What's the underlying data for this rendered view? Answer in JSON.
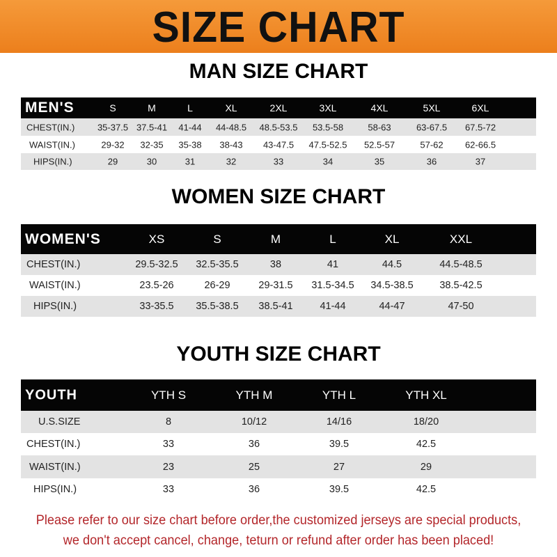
{
  "banner": {
    "title": "SIZE CHART",
    "color": "#ee8a2a"
  },
  "men": {
    "title": "MAN SIZE CHART",
    "corner": "MEN'S",
    "sizes": [
      "S",
      "M",
      "L",
      "XL",
      "2XL",
      "3XL",
      "4XL",
      "5XL",
      "6XL"
    ],
    "rows": [
      {
        "label": "CHEST(IN.)",
        "values": [
          "35-37.5",
          "37.5-41",
          "41-44",
          "44-48.5",
          "48.5-53.5",
          "53.5-58",
          "58-63",
          "63-67.5",
          "67.5-72"
        ]
      },
      {
        "label": "WAIST(IN.)",
        "values": [
          "29-32",
          "32-35",
          "35-38",
          "38-43",
          "43-47.5",
          "47.5-52.5",
          "52.5-57",
          "57-62",
          "62-66.5"
        ]
      },
      {
        "label": "HIPS(IN.)",
        "values": [
          "29",
          "30",
          "31",
          "32",
          "33",
          "34",
          "35",
          "36",
          "37"
        ]
      }
    ]
  },
  "women": {
    "title": "WOMEN SIZE CHART",
    "corner": "WOMEN'S",
    "sizes": [
      "XS",
      "S",
      "M",
      "L",
      "XL",
      "XXL"
    ],
    "rows": [
      {
        "label": "CHEST(IN.)",
        "values": [
          "29.5-32.5",
          "32.5-35.5",
          "38",
          "41",
          "44.5",
          "44.5-48.5"
        ]
      },
      {
        "label": "WAIST(IN.)",
        "values": [
          "23.5-26",
          "26-29",
          "29-31.5",
          "31.5-34.5",
          "34.5-38.5",
          "38.5-42.5"
        ]
      },
      {
        "label": "HIPS(IN.)",
        "values": [
          "33-35.5",
          "35.5-38.5",
          "38.5-41",
          "41-44",
          "44-47",
          "47-50"
        ]
      }
    ]
  },
  "youth": {
    "title": "YOUTH SIZE CHART",
    "corner": "YOUTH",
    "sizes": [
      "YTH S",
      "YTH M",
      "YTH L",
      "YTH XL"
    ],
    "rows": [
      {
        "label": "U.S.SIZE",
        "values": [
          "8",
          "10/12",
          "14/16",
          "18/20"
        ]
      },
      {
        "label": "CHEST(IN.)",
        "values": [
          "33",
          "36",
          "39.5",
          "42.5"
        ]
      },
      {
        "label": "WAIST(IN.)",
        "values": [
          "23",
          "25",
          "27",
          "29"
        ]
      },
      {
        "label": "HIPS(IN.)",
        "values": [
          "33",
          "36",
          "39.5",
          "42.5"
        ]
      }
    ]
  },
  "notice": {
    "line1": "Please refer to our size chart before order,the customized jerseys are special products,",
    "line2": "we don't accept cancel, change, teturn or refund after order has been placed!",
    "color": "#b3262a"
  }
}
